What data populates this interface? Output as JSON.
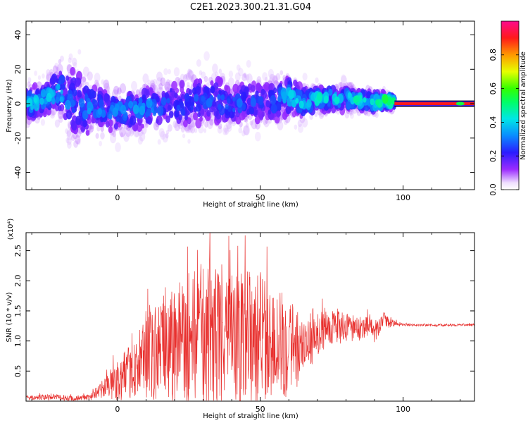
{
  "title": "C2E1.2023.300.21.31.G04",
  "chart_data": [
    {
      "type": "heatmap",
      "xlabel": "Height of straight line (km)",
      "ylabel": "Frequency (Hz)",
      "xlim": [
        -32,
        125
      ],
      "ylim": [
        -50,
        48
      ],
      "xticks": [
        0,
        50,
        100
      ],
      "yticks": [
        -40,
        -20,
        0,
        20,
        40
      ],
      "colorbar": {
        "label": "Normalized spectral amplitude",
        "range": [
          0,
          1
        ],
        "ticks": [
          0.0,
          0.2,
          0.4,
          0.6,
          0.8
        ],
        "tick_labels": [
          "0.0",
          "0.2",
          "0.4",
          "0.6",
          "0.8"
        ],
        "colormap": "rainbow (white→violet→blue→cyan→green→yellow→orange→red→magenta)"
      },
      "ridge": {
        "x": [
          -30,
          -25,
          -20,
          -15,
          -10,
          -5,
          0,
          5,
          10,
          15,
          20,
          25,
          30,
          35,
          40,
          45,
          50,
          55,
          60,
          65,
          70,
          75,
          80,
          85,
          90,
          95,
          100,
          105,
          110,
          115,
          120,
          125
        ],
        "y": [
          0,
          3,
          8,
          0,
          -2,
          -3,
          -5,
          -4,
          -2,
          -2,
          0,
          0,
          2,
          2,
          -1,
          1,
          0,
          1,
          5,
          0,
          3,
          3,
          3,
          2,
          1,
          2,
          0,
          0,
          0,
          0,
          0,
          0
        ],
        "spread": [
          8,
          8,
          12,
          18,
          14,
          10,
          10,
          10,
          10,
          12,
          12,
          12,
          12,
          12,
          10,
          12,
          10,
          10,
          10,
          8,
          6,
          6,
          6,
          5,
          5,
          4,
          1,
          1,
          1,
          1,
          1,
          1
        ],
        "peak_amplitude": [
          0.3,
          0.3,
          0.3,
          0.2,
          0.25,
          0.25,
          0.25,
          0.25,
          0.25,
          0.2,
          0.2,
          0.2,
          0.2,
          0.2,
          0.2,
          0.2,
          0.2,
          0.2,
          0.3,
          0.3,
          0.35,
          0.35,
          0.35,
          0.35,
          0.4,
          0.5,
          0.9,
          0.9,
          0.9,
          0.9,
          0.9,
          0.9
        ]
      }
    },
    {
      "type": "line",
      "xlabel": "Height of straight line (km)",
      "ylabel": "SNR (10 * v/v)",
      "y_multiplier": "(x10⁴)",
      "xlim": [
        -32,
        125
      ],
      "ylim": [
        0,
        2.8
      ],
      "xticks": [
        0,
        50,
        100
      ],
      "yticks": [
        0.5,
        1.0,
        1.5,
        2.0,
        2.5
      ],
      "ytick_labels": [
        "0.5",
        "1.0",
        "1.5",
        "2.0",
        "2.5"
      ],
      "color": "#e8302e",
      "series": [
        {
          "x": [
            -32,
            -25,
            -20,
            -15,
            -10,
            -5,
            0,
            5,
            10,
            15,
            20,
            25,
            30,
            35,
            40,
            45,
            50,
            55,
            60,
            65,
            66,
            68,
            70,
            72,
            75,
            80,
            85,
            88,
            90,
            93,
            95,
            100,
            110,
            125
          ],
          "y_mean": [
            0.05,
            0.07,
            0.06,
            0.05,
            0.06,
            0.2,
            0.35,
            0.5,
            0.7,
            0.85,
            0.95,
            1.05,
            1.05,
            1.05,
            1.0,
            1.0,
            1.05,
            1.0,
            0.95,
            0.8,
            0.9,
            1.0,
            1.1,
            1.2,
            1.25,
            1.2,
            1.2,
            1.3,
            1.1,
            1.35,
            1.3,
            1.27,
            1.26,
            1.27
          ],
          "y_amplitude": [
            0.03,
            0.05,
            0.05,
            0.04,
            0.05,
            0.15,
            0.35,
            0.45,
            0.7,
            0.9,
            1.1,
            1.2,
            1.25,
            1.2,
            1.1,
            1.2,
            1.15,
            1.0,
            0.9,
            0.5,
            0.4,
            0.4,
            0.35,
            0.35,
            0.3,
            0.25,
            0.2,
            0.2,
            0.15,
            0.15,
            0.08,
            0.02,
            0.02,
            0.02
          ]
        }
      ]
    }
  ]
}
